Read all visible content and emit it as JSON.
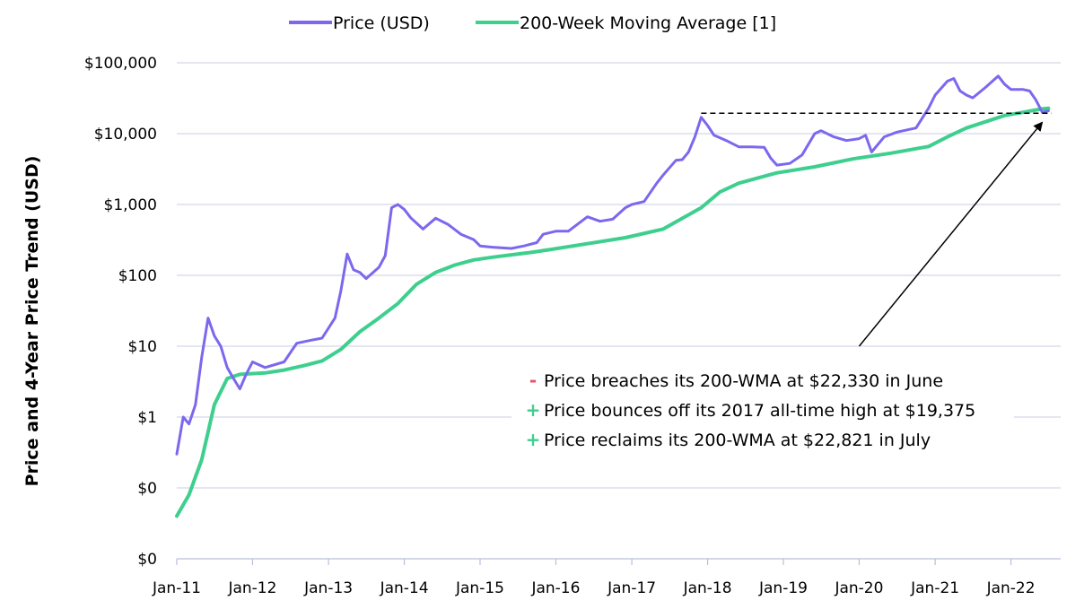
{
  "chart_data": {
    "type": "line",
    "ylabel": "Price and 4-Year Price Trend (USD)",
    "xlabel": "",
    "y_scale": "log",
    "grid": true,
    "legend_position": "top-center",
    "x_range": [
      "2011-01-01",
      "2022-08-01"
    ],
    "x_ticks": [
      "Jan-11",
      "Jan-12",
      "Jan-13",
      "Jan-14",
      "Jan-15",
      "Jan-16",
      "Jan-17",
      "Jan-18",
      "Jan-19",
      "Jan-20",
      "Jan-21",
      "Jan-22"
    ],
    "y_ticks": [
      {
        "value": 0.01,
        "label": "$0"
      },
      {
        "value": 0.1,
        "label": "$0"
      },
      {
        "value": 1,
        "label": "$1"
      },
      {
        "value": 10,
        "label": "$10"
      },
      {
        "value": 100,
        "label": "$100"
      },
      {
        "value": 1000,
        "label": "$1,000"
      },
      {
        "value": 10000,
        "label": "$10,000"
      },
      {
        "value": 100000,
        "label": "$100,000"
      }
    ],
    "series": [
      {
        "name": "Price (USD)",
        "color": "#7b68ee",
        "points": [
          [
            "2011-01-01",
            0.3
          ],
          [
            "2011-02-01",
            1.0
          ],
          [
            "2011-03-01",
            0.8
          ],
          [
            "2011-04-01",
            1.5
          ],
          [
            "2011-05-01",
            7
          ],
          [
            "2011-06-01",
            25
          ],
          [
            "2011-07-01",
            14
          ],
          [
            "2011-08-01",
            10
          ],
          [
            "2011-09-01",
            5
          ],
          [
            "2011-10-01",
            3.5
          ],
          [
            "2011-11-01",
            2.5
          ],
          [
            "2011-12-01",
            4
          ],
          [
            "2012-01-01",
            6
          ],
          [
            "2012-03-01",
            5
          ],
          [
            "2012-06-01",
            6
          ],
          [
            "2012-08-01",
            11
          ],
          [
            "2012-10-01",
            12
          ],
          [
            "2012-12-01",
            13
          ],
          [
            "2013-02-01",
            25
          ],
          [
            "2013-03-01",
            60
          ],
          [
            "2013-04-01",
            200
          ],
          [
            "2013-05-01",
            120
          ],
          [
            "2013-06-01",
            110
          ],
          [
            "2013-07-01",
            90
          ],
          [
            "2013-09-01",
            130
          ],
          [
            "2013-10-01",
            190
          ],
          [
            "2013-11-01",
            900
          ],
          [
            "2013-12-01",
            1000
          ],
          [
            "2014-01-01",
            850
          ],
          [
            "2014-02-01",
            650
          ],
          [
            "2014-04-01",
            450
          ],
          [
            "2014-06-01",
            640
          ],
          [
            "2014-08-01",
            520
          ],
          [
            "2014-10-01",
            380
          ],
          [
            "2014-12-01",
            320
          ],
          [
            "2015-01-01",
            260
          ],
          [
            "2015-03-01",
            250
          ],
          [
            "2015-06-01",
            240
          ],
          [
            "2015-08-01",
            260
          ],
          [
            "2015-10-01",
            290
          ],
          [
            "2015-11-01",
            380
          ],
          [
            "2016-01-01",
            420
          ],
          [
            "2016-03-01",
            420
          ],
          [
            "2016-06-01",
            670
          ],
          [
            "2016-08-01",
            580
          ],
          [
            "2016-10-01",
            620
          ],
          [
            "2016-12-01",
            900
          ],
          [
            "2017-01-01",
            1000
          ],
          [
            "2017-03-01",
            1100
          ],
          [
            "2017-05-01",
            2000
          ],
          [
            "2017-06-01",
            2600
          ],
          [
            "2017-08-01",
            4200
          ],
          [
            "2017-09-01",
            4300
          ],
          [
            "2017-10-01",
            5500
          ],
          [
            "2017-11-01",
            9000
          ],
          [
            "2017-12-01",
            17000
          ],
          [
            "2018-01-01",
            13000
          ],
          [
            "2018-02-01",
            9500
          ],
          [
            "2018-04-01",
            8000
          ],
          [
            "2018-06-01",
            6500
          ],
          [
            "2018-08-01",
            6500
          ],
          [
            "2018-10-01",
            6400
          ],
          [
            "2018-11-01",
            4500
          ],
          [
            "2018-12-01",
            3600
          ],
          [
            "2019-02-01",
            3800
          ],
          [
            "2019-04-01",
            5000
          ],
          [
            "2019-06-01",
            10000
          ],
          [
            "2019-07-01",
            11000
          ],
          [
            "2019-09-01",
            9000
          ],
          [
            "2019-11-01",
            8000
          ],
          [
            "2020-01-01",
            8500
          ],
          [
            "2020-02-01",
            9500
          ],
          [
            "2020-03-01",
            5500
          ],
          [
            "2020-05-01",
            9000
          ],
          [
            "2020-07-01",
            10500
          ],
          [
            "2020-10-01",
            12000
          ],
          [
            "2020-12-01",
            23000
          ],
          [
            "2021-01-01",
            35000
          ],
          [
            "2021-03-01",
            55000
          ],
          [
            "2021-04-01",
            60000
          ],
          [
            "2021-05-01",
            40000
          ],
          [
            "2021-06-01",
            35000
          ],
          [
            "2021-07-01",
            32000
          ],
          [
            "2021-09-01",
            45000
          ],
          [
            "2021-11-01",
            65000
          ],
          [
            "2021-12-01",
            50000
          ],
          [
            "2022-01-01",
            42000
          ],
          [
            "2022-03-01",
            42000
          ],
          [
            "2022-04-01",
            40000
          ],
          [
            "2022-05-01",
            30000
          ],
          [
            "2022-06-01",
            20000
          ],
          [
            "2022-07-01",
            21000
          ]
        ]
      },
      {
        "name": "200-Week Moving Average [1]",
        "color": "#3ecf8e",
        "points": [
          [
            "2011-01-01",
            0.04
          ],
          [
            "2011-03-01",
            0.08
          ],
          [
            "2011-05-01",
            0.25
          ],
          [
            "2011-07-01",
            1.5
          ],
          [
            "2011-09-01",
            3.5
          ],
          [
            "2011-11-01",
            4.0
          ],
          [
            "2012-03-01",
            4.2
          ],
          [
            "2012-06-01",
            4.6
          ],
          [
            "2012-09-01",
            5.3
          ],
          [
            "2012-12-01",
            6.2
          ],
          [
            "2013-03-01",
            9
          ],
          [
            "2013-06-01",
            16
          ],
          [
            "2013-09-01",
            25
          ],
          [
            "2013-12-01",
            40
          ],
          [
            "2014-03-01",
            75
          ],
          [
            "2014-06-01",
            110
          ],
          [
            "2014-09-01",
            140
          ],
          [
            "2014-12-01",
            165
          ],
          [
            "2015-03-01",
            180
          ],
          [
            "2015-06-01",
            195
          ],
          [
            "2015-09-01",
            210
          ],
          [
            "2015-12-01",
            230
          ],
          [
            "2016-06-01",
            280
          ],
          [
            "2016-12-01",
            340
          ],
          [
            "2017-06-01",
            450
          ],
          [
            "2017-12-01",
            900
          ],
          [
            "2018-03-01",
            1500
          ],
          [
            "2018-06-01",
            2000
          ],
          [
            "2018-12-01",
            2800
          ],
          [
            "2019-06-01",
            3400
          ],
          [
            "2019-12-01",
            4400
          ],
          [
            "2020-06-01",
            5300
          ],
          [
            "2020-12-01",
            6600
          ],
          [
            "2021-03-01",
            9000
          ],
          [
            "2021-06-01",
            12000
          ],
          [
            "2021-12-01",
            18000
          ],
          [
            "2022-06-01",
            22330
          ],
          [
            "2022-07-01",
            22821
          ]
        ]
      }
    ],
    "reference_line": {
      "y": 19375,
      "x_start": "2017-12-01",
      "x_end": "2022-07-15"
    },
    "annotation_arrow": {
      "from": [
        "2020-01-01",
        10
      ],
      "to": [
        "2022-06-01",
        19375
      ]
    },
    "notes": [
      {
        "sign": "-",
        "sign_color": "#e8536b",
        "text": "Price breaches its 200-WMA at $22,330 in June"
      },
      {
        "sign": "+",
        "sign_color": "#3ecf8e",
        "text": "Price bounces off its 2017 all-time high at $19,375"
      },
      {
        "sign": "+",
        "sign_color": "#3ecf8e",
        "text": "Price reclaims its 200-WMA at $22,821 in July"
      }
    ]
  }
}
